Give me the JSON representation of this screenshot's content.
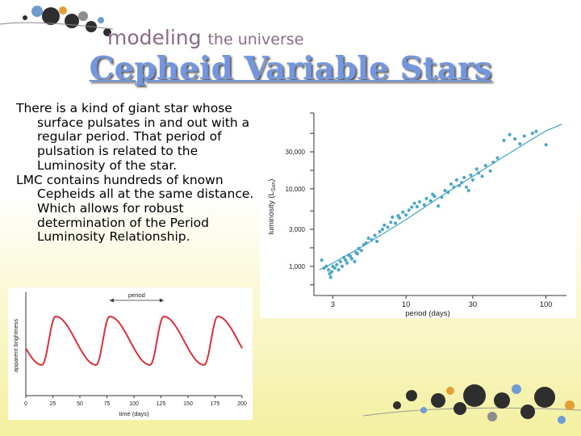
{
  "header": {
    "brand_main": "modeling",
    "brand_tail": "the universe"
  },
  "slide": {
    "title": "Cepheid Variable Stars",
    "paragraphs": [
      "There is a kind of giant star whose surface pulsates in and out with a regular period. That period of pulsation is related to the Luminosity of the star.",
      "LMC contains hundreds of known Cepheids all at the same distance. Which allows for robust determination of the Period Luminosity Relationship."
    ]
  },
  "colors": {
    "title": "#7396de",
    "points": "#4fa7c6",
    "curve": "#d9303c"
  },
  "chart_data": [
    {
      "type": "scatter",
      "xlabel": "period (days)",
      "ylabel_main": "luminosity (L",
      "ylabel_sub": "Sun",
      "ylabel_close": ")",
      "x_scale": "log",
      "y_scale": "log",
      "xlim": [
        2.2,
        140
      ],
      "ylim": [
        420,
        95000
      ],
      "xticks": [
        3,
        10,
        30,
        100
      ],
      "xtick_labels": [
        "3",
        "10",
        "30",
        "100"
      ],
      "yticks": [
        1000,
        3000,
        10000,
        30000
      ],
      "ytick_labels": [
        "1,000",
        "3,000",
        "10,000",
        "30,000"
      ],
      "points": [
        [
          2.5,
          1200
        ],
        [
          2.6,
          950
        ],
        [
          2.7,
          1000
        ],
        [
          2.8,
          900
        ],
        [
          2.85,
          800
        ],
        [
          2.9,
          720
        ],
        [
          2.95,
          850
        ],
        [
          3.0,
          1000
        ],
        [
          3.1,
          950
        ],
        [
          3.2,
          1050
        ],
        [
          3.3,
          900
        ],
        [
          3.4,
          1150
        ],
        [
          3.5,
          1000
        ],
        [
          3.6,
          1300
        ],
        [
          3.7,
          1200
        ],
        [
          3.8,
          1100
        ],
        [
          3.9,
          1400
        ],
        [
          4.0,
          1350
        ],
        [
          4.1,
          1250
        ],
        [
          4.3,
          1150
        ],
        [
          4.4,
          1500
        ],
        [
          4.5,
          1450
        ],
        [
          4.6,
          1700
        ],
        [
          4.8,
          1600
        ],
        [
          5.0,
          1900
        ],
        [
          5.2,
          2000
        ],
        [
          5.4,
          2300
        ],
        [
          5.7,
          2200
        ],
        [
          6.0,
          2500
        ],
        [
          6.2,
          2100
        ],
        [
          6.5,
          2800
        ],
        [
          6.8,
          3000
        ],
        [
          7.0,
          3400
        ],
        [
          7.4,
          3200
        ],
        [
          7.8,
          3700
        ],
        [
          8.0,
          4300
        ],
        [
          8.4,
          3600
        ],
        [
          8.8,
          4500
        ],
        [
          9.0,
          4200
        ],
        [
          9.5,
          5000
        ],
        [
          10.0,
          4600
        ],
        [
          10.5,
          5300
        ],
        [
          11.0,
          5800
        ],
        [
          11.5,
          6500
        ],
        [
          12.0,
          5900
        ],
        [
          12.5,
          6800
        ],
        [
          13.5,
          6200
        ],
        [
          14.0,
          7500
        ],
        [
          15.0,
          7000
        ],
        [
          15.5,
          8500
        ],
        [
          16.0,
          8000
        ],
        [
          17.0,
          6000
        ],
        [
          18.0,
          7800
        ],
        [
          19.0,
          9500
        ],
        [
          20.0,
          9000
        ],
        [
          21.0,
          11500
        ],
        [
          22.0,
          10500
        ],
        [
          23.0,
          13000
        ],
        [
          24.0,
          11000
        ],
        [
          25.0,
          12000
        ],
        [
          26.0,
          14000
        ],
        [
          27.0,
          10500
        ],
        [
          28.0,
          9500
        ],
        [
          29.0,
          15000
        ],
        [
          30.0,
          13000
        ],
        [
          32.0,
          18000
        ],
        [
          33.0,
          16000
        ],
        [
          35.0,
          14500
        ],
        [
          37.0,
          20000
        ],
        [
          40.0,
          17000
        ],
        [
          42.0,
          22000
        ],
        [
          45.0,
          25000
        ],
        [
          50.0,
          42000
        ],
        [
          55.0,
          50000
        ],
        [
          60.0,
          44000
        ],
        [
          65.0,
          38000
        ],
        [
          70.0,
          48000
        ],
        [
          80.0,
          52000
        ],
        [
          85.0,
          55000
        ],
        [
          100.0,
          37000
        ]
      ],
      "fit": [
        [
          2.4,
          900
        ],
        [
          3,
          1100
        ],
        [
          5,
          1850
        ],
        [
          10,
          4000
        ],
        [
          20,
          9200
        ],
        [
          30,
          14500
        ],
        [
          50,
          26000
        ],
        [
          100,
          56000
        ],
        [
          130,
          68000
        ]
      ]
    },
    {
      "type": "line",
      "xlabel": "time (days)",
      "ylabel": "apparent brightness",
      "xlim": [
        0,
        200
      ],
      "ylim": [
        0,
        1
      ],
      "xticks": [
        0,
        25,
        50,
        75,
        100,
        125,
        150,
        175,
        200
      ],
      "xtick_labels": [
        "0",
        "25",
        "50",
        "75",
        "100",
        "125",
        "150",
        "175",
        "200"
      ],
      "annotation": "period",
      "period_days": 50,
      "phase_days": 15,
      "curve_x_range": [
        0,
        200
      ]
    }
  ]
}
